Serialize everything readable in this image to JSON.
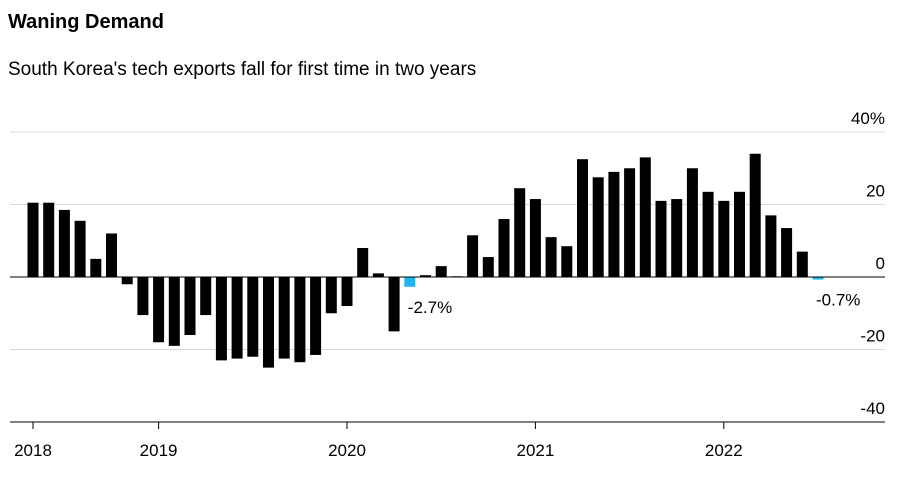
{
  "chart_data": {
    "type": "bar",
    "title": "Waning Demand",
    "subtitle": "South Korea's tech exports fall for first time in two years",
    "categories": [
      "2018",
      null,
      null,
      null,
      null,
      null,
      null,
      null,
      "2019",
      null,
      null,
      null,
      null,
      null,
      null,
      null,
      null,
      null,
      null,
      null,
      "2020",
      null,
      null,
      null,
      null,
      null,
      null,
      null,
      null,
      null,
      null,
      null,
      "2021",
      null,
      null,
      null,
      null,
      null,
      null,
      null,
      null,
      null,
      null,
      null,
      "2022",
      null,
      null,
      null,
      null,
      null,
      null
    ],
    "values": [
      20.5,
      20.5,
      18.5,
      15.5,
      5,
      12,
      -2,
      -10.5,
      -18,
      -19,
      -16,
      -10.5,
      -23,
      -22.5,
      -22,
      -25,
      -22.5,
      -23.5,
      -21.5,
      -10,
      -8,
      8,
      1,
      -15,
      -2.7,
      0.5,
      3,
      0.2,
      11.5,
      5.5,
      16,
      24.5,
      21.5,
      11,
      8.5,
      32.5,
      27.5,
      29,
      30,
      33,
      21,
      21.5,
      30,
      23.5,
      21,
      23.5,
      34,
      17,
      13.5,
      7,
      -0.7
    ],
    "value_labels": [
      null,
      null,
      null,
      null,
      null,
      null,
      null,
      null,
      null,
      null,
      null,
      null,
      null,
      null,
      null,
      null,
      null,
      null,
      null,
      null,
      null,
      null,
      null,
      null,
      "-2.7%",
      null,
      null,
      null,
      null,
      null,
      null,
      null,
      null,
      null,
      null,
      null,
      null,
      null,
      null,
      null,
      null,
      null,
      null,
      null,
      null,
      null,
      null,
      null,
      null,
      null,
      "-0.7%"
    ],
    "color": "#000000",
    "highlight_color": "#1eb4f0",
    "ylim": [
      -40,
      40
    ],
    "yticks": [
      {
        "value": 40,
        "label": "40%"
      },
      20,
      0,
      -20,
      -40
    ],
    "grid": true
  }
}
